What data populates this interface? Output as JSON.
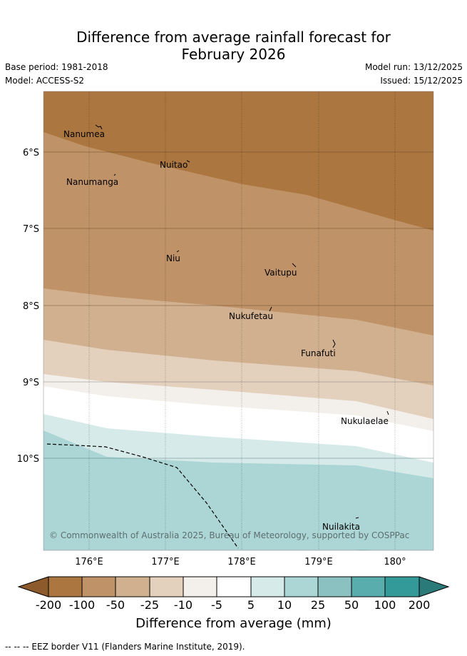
{
  "title_line1": "Difference from average rainfall forecast for",
  "title_line2": "February 2026",
  "base_period": "Base period: 1981-2018",
  "model": "Model: ACCESS-S2",
  "model_run": "Model run: 13/12/2025",
  "issued": "Issued: 15/12/2025",
  "lat_labels": [
    "6°S",
    "7°S",
    "8°S",
    "9°S",
    "10°S"
  ],
  "lon_labels": [
    "176°E",
    "177°E",
    "178°E",
    "179°E",
    "180°"
  ],
  "islands": [
    {
      "name": "Nanumea"
    },
    {
      "name": "Nuitao"
    },
    {
      "name": "Nanumanga"
    },
    {
      "name": "Niu"
    },
    {
      "name": "Vaitupu"
    },
    {
      "name": "Nukufetau"
    },
    {
      "name": "Funafuti"
    },
    {
      "name": "Nukulaelae"
    },
    {
      "name": "Nuilakita"
    }
  ],
  "copyright": "© Commonwealth of Australia 2025, Bureau of Meteorology, supported by COSPPac",
  "colorbar": {
    "ticks": [
      "-200",
      "-100",
      "-50",
      "-25",
      "-10",
      "-5",
      "5",
      "10",
      "25",
      "50",
      "100",
      "200"
    ],
    "colors": [
      "#8c5a2b",
      "#ab763f",
      "#c09268",
      "#d1b08f",
      "#e3d0bd",
      "#f3efea",
      "#ffffff",
      "#d6ebe9",
      "#acd6d6",
      "#8bc2c1",
      "#5aadad",
      "#339999",
      "#2a7a7a"
    ],
    "label": "Difference from average (mm)"
  },
  "footer": "-- -- -- EEZ border V11 (Flanders Marine Institute, 2019)."
}
